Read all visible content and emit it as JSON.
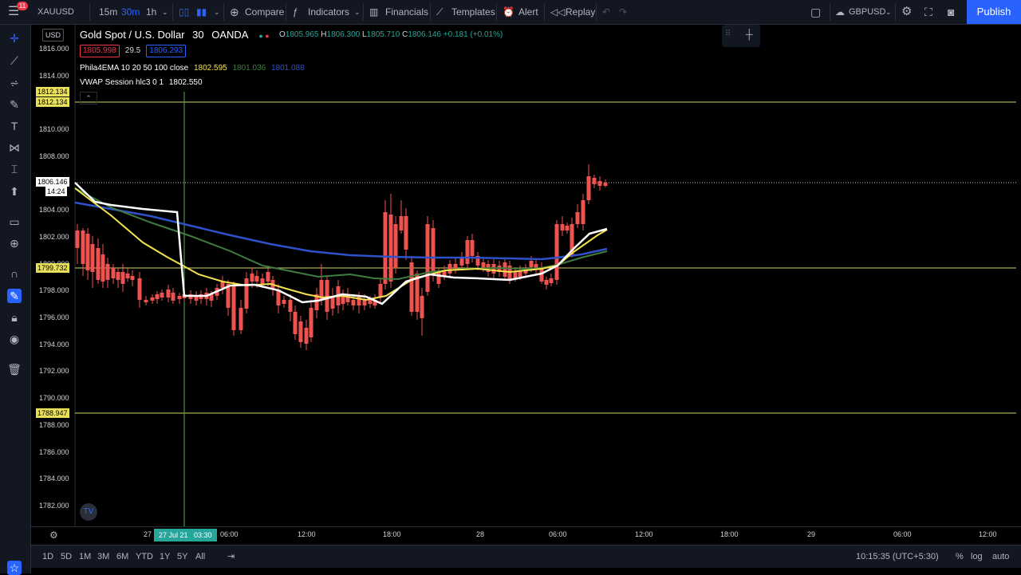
{
  "header": {
    "badge_count": "11",
    "symbol": "XAUUSD",
    "intervals": [
      "15m",
      "30m",
      "1h"
    ],
    "active_interval": "30m",
    "compare_label": "Compare",
    "indicators_label": "Indicators",
    "financials_label": "Financials",
    "templates_label": "Templates",
    "alert_label": "Alert",
    "replay_label": "Replay",
    "layout_name": "GBPUSD",
    "publish_label": "Publish"
  },
  "legend": {
    "currency": "USD",
    "title": "Gold Spot / U.S. Dollar",
    "interval": "30",
    "source": "OANDA",
    "o_label": "O",
    "o_value": "1805.965",
    "h_label": "H",
    "h_value": "1806.300",
    "l_label": "L",
    "l_value": "1805.710",
    "c_label": "C",
    "c_value": "1806.146",
    "change": "+0.181 (+0.01%)",
    "bid": "1805.998",
    "spread": "29.5",
    "ask": "1806.293",
    "ema_label": "Phila4EMA 10 20 50 100 close",
    "ema_values": [
      "1802.595",
      "1801.036",
      "1801.088"
    ],
    "vwap_label": "VWAP Session hlc3 0 1",
    "vwap_value": "1802.550"
  },
  "price_axis": {
    "ticks": [
      "1816.000",
      "1814.000",
      "1812.000",
      "1810.000",
      "1808.000",
      "1806.000",
      "1804.000",
      "1802.000",
      "1800.000",
      "1798.000",
      "1796.000",
      "1794.000",
      "1792.000",
      "1790.000",
      "1788.000",
      "1786.000",
      "1784.000",
      "1782.000"
    ],
    "labels": {
      "level_top_a": "1812.134",
      "level_top_b": "1812.134",
      "current_price": "1806.146",
      "countdown": "14:24",
      "level_mid": "1799.732",
      "level_low": "1788.947"
    }
  },
  "time_axis": {
    "ticks": [
      "27",
      "06:00",
      "12:00",
      "18:00",
      "28",
      "06:00",
      "12:00",
      "18:00",
      "29",
      "06:00",
      "12:00"
    ],
    "cursor_label": "27 Jul 21   03:30"
  },
  "bottom": {
    "ranges": [
      "1D",
      "5D",
      "1M",
      "3M",
      "6M",
      "YTD",
      "1Y",
      "5Y",
      "All"
    ],
    "clock": "10:15:35 (UTC+5:30)",
    "pct_label": "%",
    "log_label": "log",
    "auto_label": "auto"
  },
  "colors": {
    "up": "#26a69a",
    "down": "#ef5350",
    "accent": "#2962ff",
    "level_line": "#d4d46a",
    "ema_white": "#ffffff",
    "ema_yellow": "#f5e34e",
    "ema_green": "#3f7d3f",
    "ema_blue": "#2f51c9"
  },
  "icons": [
    "menu-icon",
    "candles-icon",
    "compare-plus-icon",
    "indicators-icon",
    "financials-icon",
    "templates-icon",
    "alert-icon",
    "replay-icon",
    "undo-icon",
    "redo-icon",
    "settings-icon",
    "fullscreen-icon",
    "camera-icon",
    "cloud-icon"
  ]
}
